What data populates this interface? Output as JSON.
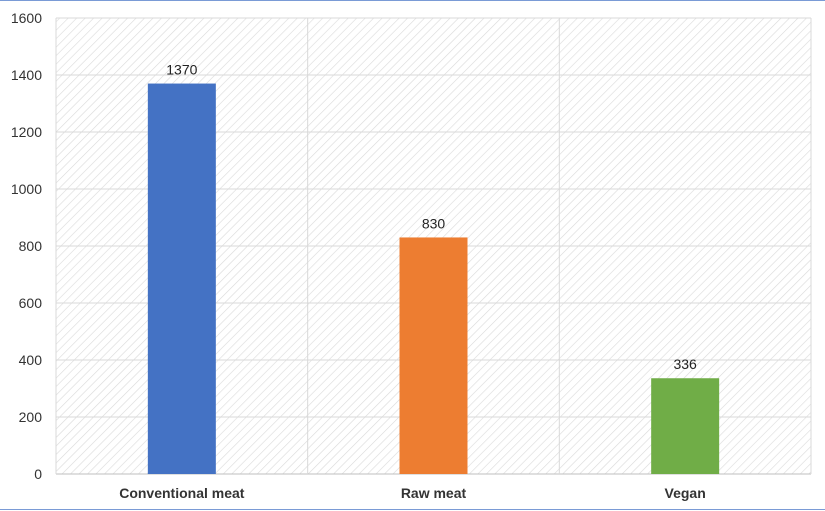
{
  "chart_data": {
    "type": "bar",
    "categories": [
      "Conventional meat",
      "Raw meat",
      "Vegan"
    ],
    "values": [
      1370,
      830,
      336
    ],
    "data_labels": [
      "1370",
      "830",
      "336"
    ],
    "bar_colors": [
      "#4472c4",
      "#ed7d31",
      "#70ad47"
    ],
    "ylim": [
      0,
      1600
    ],
    "y_ticks": [
      0,
      200,
      400,
      600,
      800,
      1000,
      1200,
      1400,
      1600
    ],
    "y_tick_labels": [
      "0",
      "200",
      "400",
      "600",
      "800",
      "1000",
      "1200",
      "1400",
      "1600"
    ],
    "grid": true,
    "plot_background": "hatched",
    "legend": "none"
  }
}
